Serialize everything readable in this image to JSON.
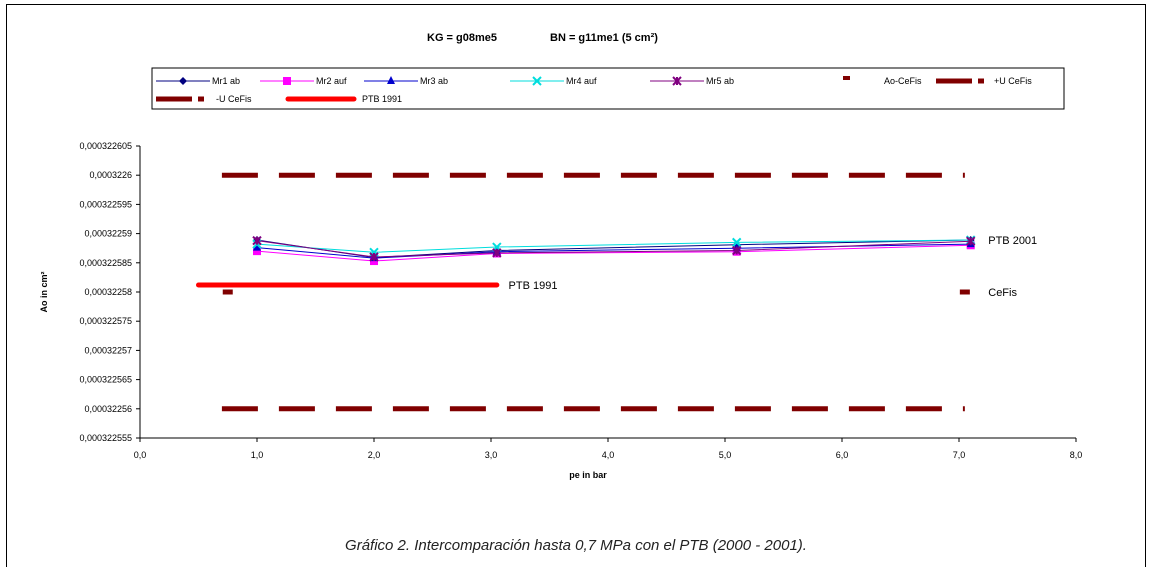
{
  "chart_data": {
    "type": "line",
    "title_left": "KG = g08me5",
    "title_right": "BN = g11me1 (5 cm²)",
    "xlabel": "pe in bar",
    "ylabel": "Ao in cm²",
    "xlim": [
      0,
      8
    ],
    "ylim": [
      0.000322555,
      0.000322605
    ],
    "x_ticks": [
      "0,0",
      "1,0",
      "2,0",
      "3,0",
      "4,0",
      "5,0",
      "6,0",
      "7,0",
      "8,0"
    ],
    "y_ticks": [
      "0,000322555",
      "0,00032256",
      "0,000322565",
      "0,00032257",
      "0,000322575",
      "0,00032258",
      "0,000322585",
      "0,00032259",
      "0,000322595",
      "0,0003226",
      "0,000322605"
    ],
    "grid": false,
    "legend": "top",
    "series": [
      {
        "name": "Mr1 ab",
        "color": "#000080",
        "marker": "diamond",
        "x": [
          1.0,
          2.0,
          3.05,
          5.1,
          7.1
        ],
        "y": [
          0.0003225889,
          0.0003225859,
          0.0003225871,
          0.0003225881,
          0.0003225889
        ]
      },
      {
        "name": "Mr2 auf",
        "color": "#FF00FF",
        "marker": "square",
        "x": [
          1.0,
          2.0,
          3.05,
          5.1,
          7.1
        ],
        "y": [
          0.000322587,
          0.0003225853,
          0.0003225866,
          0.0003225869,
          0.000322588
        ]
      },
      {
        "name": "Mr3 ab",
        "color": "#0000CD",
        "marker": "triangle",
        "x": [
          1.0,
          2.0,
          3.05,
          5.1,
          7.1
        ],
        "y": [
          0.0003225876,
          0.0003225858,
          0.0003225869,
          0.0003225875,
          0.0003225882
        ]
      },
      {
        "name": "Mr4 auf",
        "color": "#00DDDD",
        "marker": "x",
        "x": [
          1.0,
          2.0,
          3.05,
          5.1,
          7.1
        ],
        "y": [
          0.0003225882,
          0.0003225868,
          0.0003225877,
          0.0003225885,
          0.0003225889
        ]
      },
      {
        "name": "Mr5 ab",
        "color": "#800080",
        "marker": "star",
        "x": [
          1.0,
          2.0,
          3.05,
          5.1,
          7.1
        ],
        "y": [
          0.0003225888,
          0.000322586,
          0.0003225867,
          0.0003225871,
          0.0003225887
        ]
      }
    ],
    "reference_lines": [
      {
        "name": "+U CeFis",
        "color": "#800000",
        "style": "dashed",
        "x": [
          0.7,
          7.05
        ],
        "y": [
          0.0003226,
          0.0003226
        ]
      },
      {
        "name": "-U CeFis",
        "color": "#800000",
        "style": "dashed",
        "x": [
          0.7,
          7.05
        ],
        "y": [
          0.00032256,
          0.00032256
        ]
      },
      {
        "name": "PTB 1991",
        "color": "#FF0000",
        "style": "solid",
        "x": [
          0.5,
          3.05
        ],
        "y": [
          0.0003225812,
          0.0003225812
        ]
      }
    ],
    "points": [
      {
        "name": "Ao-CeFis",
        "color": "#800000",
        "x": [
          0.75,
          7.05
        ],
        "y": [
          0.00032258,
          0.00032258
        ]
      }
    ],
    "annotations": [
      {
        "text": "PTB 1991",
        "x": 3.15,
        "y": 0.0003225812
      },
      {
        "text": "PTB 2001",
        "x": 7.25,
        "y": 0.0003225889
      },
      {
        "text": "CeFis",
        "x": 7.25,
        "y": 0.00032258
      }
    ],
    "legend_entries": [
      {
        "label": "Mr1 ab",
        "color": "#000080",
        "kind": "line-marker",
        "marker": "diamond"
      },
      {
        "label": "Mr2 auf",
        "color": "#FF00FF",
        "kind": "line-marker",
        "marker": "square"
      },
      {
        "label": "Mr3 ab",
        "color": "#0000CD",
        "kind": "line-marker",
        "marker": "triangle"
      },
      {
        "label": "Mr4 auf",
        "color": "#00DDDD",
        "kind": "line-marker",
        "marker": "x"
      },
      {
        "label": "Mr5 ab",
        "color": "#800080",
        "kind": "line-marker",
        "marker": "star"
      },
      {
        "label": "Ao-CeFis",
        "color": "#800000",
        "kind": "point"
      },
      {
        "label": "+U CeFis",
        "color": "#800000",
        "kind": "dash"
      },
      {
        "label": "-U CeFis",
        "color": "#800000",
        "kind": "dash"
      },
      {
        "label": "PTB 1991",
        "color": "#FF0000",
        "kind": "thick"
      }
    ]
  },
  "caption": "Gráfico 2. Intercomparación hasta 0,7 MPa con el PTB (2000 - 2001)."
}
